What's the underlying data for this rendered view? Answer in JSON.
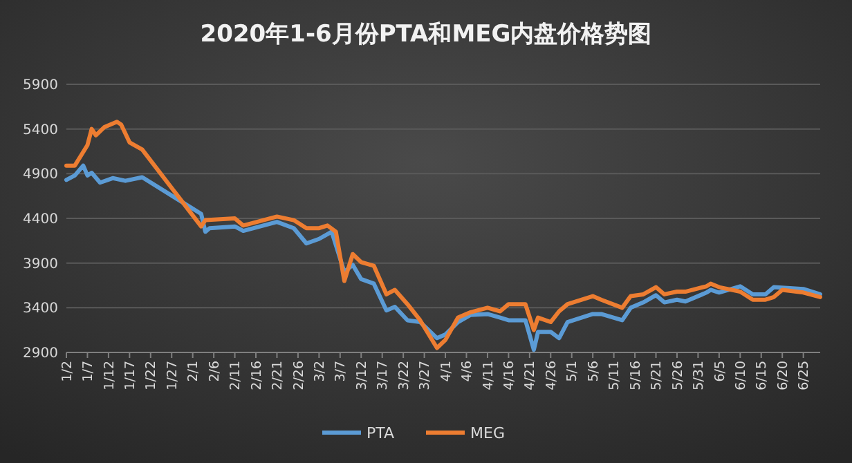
{
  "chart_data": {
    "type": "line",
    "title": "2020年1-6月份PTA和MEG内盘价格势图",
    "xlim": [
      "2020-01-02",
      "2020-06-29"
    ],
    "xticks": [
      {
        "value": "2020-01-02",
        "label": "1/2"
      },
      {
        "value": "2020-01-07",
        "label": "1/7"
      },
      {
        "value": "2020-01-12",
        "label": "1/12"
      },
      {
        "value": "2020-01-17",
        "label": "1/17"
      },
      {
        "value": "2020-01-22",
        "label": "1/22"
      },
      {
        "value": "2020-01-27",
        "label": "1/27"
      },
      {
        "value": "2020-02-01",
        "label": "2/1"
      },
      {
        "value": "2020-02-06",
        "label": "2/6"
      },
      {
        "value": "2020-02-11",
        "label": "2/11"
      },
      {
        "value": "2020-02-16",
        "label": "2/16"
      },
      {
        "value": "2020-02-21",
        "label": "2/21"
      },
      {
        "value": "2020-02-26",
        "label": "2/26"
      },
      {
        "value": "2020-03-02",
        "label": "3/2"
      },
      {
        "value": "2020-03-07",
        "label": "3/7"
      },
      {
        "value": "2020-03-12",
        "label": "3/12"
      },
      {
        "value": "2020-03-17",
        "label": "3/17"
      },
      {
        "value": "2020-03-22",
        "label": "3/22"
      },
      {
        "value": "2020-03-27",
        "label": "3/27"
      },
      {
        "value": "2020-04-01",
        "label": "4/1"
      },
      {
        "value": "2020-04-06",
        "label": "4/6"
      },
      {
        "value": "2020-04-11",
        "label": "4/11"
      },
      {
        "value": "2020-04-16",
        "label": "4/16"
      },
      {
        "value": "2020-04-21",
        "label": "4/21"
      },
      {
        "value": "2020-04-26",
        "label": "4/26"
      },
      {
        "value": "2020-05-01",
        "label": "5/1"
      },
      {
        "value": "2020-05-06",
        "label": "5/6"
      },
      {
        "value": "2020-05-11",
        "label": "5/11"
      },
      {
        "value": "2020-05-16",
        "label": "5/16"
      },
      {
        "value": "2020-05-21",
        "label": "5/21"
      },
      {
        "value": "2020-05-26",
        "label": "5/26"
      },
      {
        "value": "2020-05-31",
        "label": "5/31"
      },
      {
        "value": "2020-06-05",
        "label": "6/5"
      },
      {
        "value": "2020-06-10",
        "label": "6/10"
      },
      {
        "value": "2020-06-15",
        "label": "6/15"
      },
      {
        "value": "2020-06-20",
        "label": "6/20"
      },
      {
        "value": "2020-06-25",
        "label": "6/25"
      }
    ],
    "ylim": [
      2900,
      5900
    ],
    "yticks": [
      2900,
      3400,
      3900,
      4400,
      4900,
      5400,
      5900
    ],
    "grid": "y",
    "legend": "bottom",
    "marker": "none",
    "line_style": "solid",
    "series": [
      {
        "name": "PTA",
        "color": "#5b9bd5",
        "x": [
          "2020-01-02",
          "2020-01-04",
          "2020-01-06",
          "2020-01-07",
          "2020-01-08",
          "2020-01-10",
          "2020-01-13",
          "2020-01-16",
          "2020-01-20",
          "2020-02-03",
          "2020-02-04",
          "2020-02-05",
          "2020-02-11",
          "2020-02-13",
          "2020-02-21",
          "2020-02-25",
          "2020-02-28",
          "2020-03-02",
          "2020-03-05",
          "2020-03-08",
          "2020-03-10",
          "2020-03-12",
          "2020-03-15",
          "2020-03-18",
          "2020-03-20",
          "2020-03-23",
          "2020-03-26",
          "2020-03-30",
          "2020-04-01",
          "2020-04-04",
          "2020-04-07",
          "2020-04-11",
          "2020-04-14",
          "2020-04-16",
          "2020-04-20",
          "2020-04-22",
          "2020-04-23",
          "2020-04-26",
          "2020-04-28",
          "2020-04-30",
          "2020-05-06",
          "2020-05-08",
          "2020-05-13",
          "2020-05-15",
          "2020-05-18",
          "2020-05-21",
          "2020-05-23",
          "2020-05-26",
          "2020-05-28",
          "2020-06-02",
          "2020-06-03",
          "2020-06-05",
          "2020-06-10",
          "2020-06-13",
          "2020-06-16",
          "2020-06-18",
          "2020-06-25",
          "2020-06-29"
        ],
        "values": [
          4830,
          4880,
          4990,
          4880,
          4910,
          4800,
          4850,
          4820,
          4860,
          4450,
          4250,
          4290,
          4310,
          4260,
          4360,
          4290,
          4120,
          4170,
          4250,
          3800,
          3880,
          3720,
          3670,
          3370,
          3410,
          3260,
          3240,
          3060,
          3100,
          3240,
          3320,
          3330,
          3290,
          3260,
          3260,
          2930,
          3130,
          3130,
          3060,
          3240,
          3330,
          3330,
          3260,
          3400,
          3460,
          3540,
          3460,
          3490,
          3470,
          3570,
          3600,
          3570,
          3640,
          3550,
          3550,
          3630,
          3610,
          3550
        ]
      },
      {
        "name": "MEG",
        "color": "#ed7d31",
        "x": [
          "2020-01-02",
          "2020-01-04",
          "2020-01-07",
          "2020-01-08",
          "2020-01-09",
          "2020-01-11",
          "2020-01-14",
          "2020-01-15",
          "2020-01-17",
          "2020-01-20",
          "2020-02-03",
          "2020-02-04",
          "2020-02-11",
          "2020-02-13",
          "2020-02-21",
          "2020-02-25",
          "2020-02-28",
          "2020-03-02",
          "2020-03-04",
          "2020-03-06",
          "2020-03-08",
          "2020-03-10",
          "2020-03-12",
          "2020-03-15",
          "2020-03-18",
          "2020-03-20",
          "2020-03-23",
          "2020-03-26",
          "2020-03-30",
          "2020-04-01",
          "2020-04-04",
          "2020-04-07",
          "2020-04-11",
          "2020-04-14",
          "2020-04-16",
          "2020-04-20",
          "2020-04-22",
          "2020-04-23",
          "2020-04-26",
          "2020-04-28",
          "2020-04-30",
          "2020-05-06",
          "2020-05-08",
          "2020-05-13",
          "2020-05-15",
          "2020-05-18",
          "2020-05-21",
          "2020-05-23",
          "2020-05-26",
          "2020-05-28",
          "2020-06-02",
          "2020-06-03",
          "2020-06-05",
          "2020-06-10",
          "2020-06-13",
          "2020-06-16",
          "2020-06-18",
          "2020-06-20",
          "2020-06-25",
          "2020-06-29"
        ],
        "values": [
          4990,
          4990,
          5220,
          5400,
          5330,
          5420,
          5480,
          5450,
          5250,
          5170,
          4310,
          4380,
          4400,
          4320,
          4420,
          4380,
          4290,
          4290,
          4320,
          4250,
          3700,
          4000,
          3910,
          3870,
          3550,
          3600,
          3440,
          3260,
          2950,
          3040,
          3290,
          3350,
          3400,
          3360,
          3440,
          3440,
          3150,
          3290,
          3240,
          3360,
          3440,
          3530,
          3490,
          3400,
          3530,
          3550,
          3630,
          3550,
          3580,
          3580,
          3640,
          3670,
          3630,
          3580,
          3490,
          3490,
          3520,
          3600,
          3570,
          3520
        ]
      }
    ]
  }
}
